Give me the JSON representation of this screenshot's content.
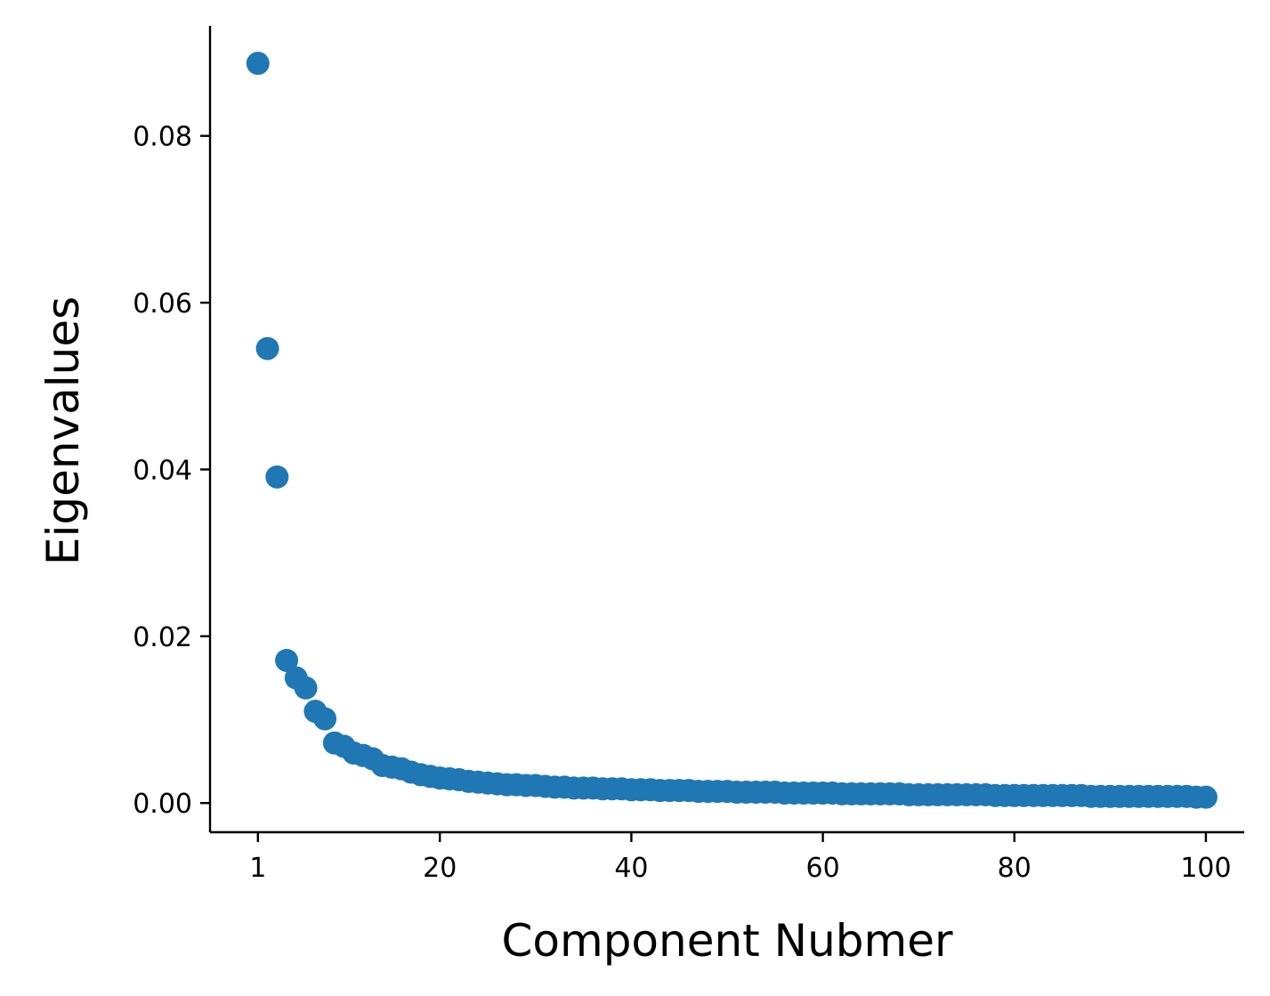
{
  "chart_data": {
    "type": "scatter",
    "title": "",
    "xlabel": "Component Nubmer",
    "ylabel": "Eigenvalues",
    "xlim": [
      -4,
      104
    ],
    "ylim": [
      -0.0035,
      0.0932
    ],
    "xticks": [
      1,
      20,
      40,
      60,
      80,
      100
    ],
    "xtick_labels": [
      "1",
      "20",
      "40",
      "60",
      "80",
      "100"
    ],
    "yticks": [
      0.0,
      0.02,
      0.04,
      0.06,
      0.08
    ],
    "ytick_labels": [
      "0.00",
      "0.02",
      "0.04",
      "0.06",
      "0.08"
    ],
    "grid": false,
    "spines": [
      "left",
      "bottom"
    ],
    "color": "#1f77b4",
    "series": [
      {
        "x": [
          1,
          2,
          3,
          4,
          5,
          6,
          7,
          8,
          9,
          10,
          11,
          12,
          13,
          14,
          15,
          16,
          17,
          18,
          19,
          20,
          21,
          22,
          23,
          24,
          25,
          26,
          27,
          28,
          29,
          30,
          31,
          32,
          33,
          34,
          35,
          36,
          37,
          38,
          39,
          40,
          41,
          42,
          43,
          44,
          45,
          46,
          47,
          48,
          49,
          50,
          51,
          52,
          53,
          54,
          55,
          56,
          57,
          58,
          59,
          60,
          61,
          62,
          63,
          64,
          65,
          66,
          67,
          68,
          69,
          70,
          71,
          72,
          73,
          74,
          75,
          76,
          77,
          78,
          79,
          80,
          81,
          82,
          83,
          84,
          85,
          86,
          87,
          88,
          89,
          90,
          91,
          92,
          93,
          94,
          95,
          96,
          97,
          98,
          99,
          100
        ],
        "values": [
          0.0887,
          0.0545,
          0.0391,
          0.0171,
          0.015,
          0.0138,
          0.011,
          0.0101,
          0.0072,
          0.0068,
          0.006,
          0.0057,
          0.0053,
          0.0045,
          0.0043,
          0.0041,
          0.0037,
          0.0034,
          0.0032,
          0.003,
          0.0029,
          0.0028,
          0.0026,
          0.0025,
          0.0024,
          0.0023,
          0.0022,
          0.0022,
          0.0021,
          0.0021,
          0.002,
          0.0019,
          0.0019,
          0.0018,
          0.0018,
          0.0018,
          0.0017,
          0.0017,
          0.0017,
          0.0016,
          0.0016,
          0.0016,
          0.0015,
          0.0015,
          0.0015,
          0.0015,
          0.0014,
          0.0014,
          0.0014,
          0.0014,
          0.0013,
          0.0013,
          0.0013,
          0.0013,
          0.0013,
          0.0012,
          0.0012,
          0.0012,
          0.0012,
          0.0012,
          0.0012,
          0.0011,
          0.0011,
          0.0011,
          0.0011,
          0.0011,
          0.0011,
          0.0011,
          0.001,
          0.001,
          0.001,
          0.001,
          0.001,
          0.001,
          0.001,
          0.001,
          0.001,
          0.0009,
          0.0009,
          0.0009,
          0.0009,
          0.0009,
          0.0009,
          0.0009,
          0.0009,
          0.0009,
          0.0009,
          0.0008,
          0.0008,
          0.0008,
          0.0008,
          0.0008,
          0.0008,
          0.0008,
          0.0008,
          0.0008,
          0.0008,
          0.0008,
          0.0007,
          0.0007
        ]
      }
    ]
  }
}
